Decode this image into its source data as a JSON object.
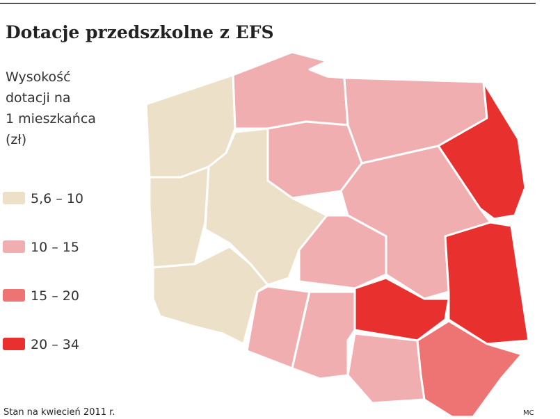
{
  "header": {
    "title": "Dotacje przedszkolne z EFS"
  },
  "legend": {
    "title": [
      "Wysokość",
      "dotacji na",
      "1 mieszkańca",
      "(zł)"
    ],
    "items": [
      {
        "label": "5,6 – 10",
        "color": "#ede0c8"
      },
      {
        "label": "10 – 15",
        "color": "#f0aeb0"
      },
      {
        "label": "15 – 20",
        "color": "#ee7373"
      },
      {
        "label": "20 – 34",
        "color": "#e8312e"
      }
    ]
  },
  "footer": {
    "note": "Stan na kwiecień 2011 r.",
    "author": "MC"
  }
}
